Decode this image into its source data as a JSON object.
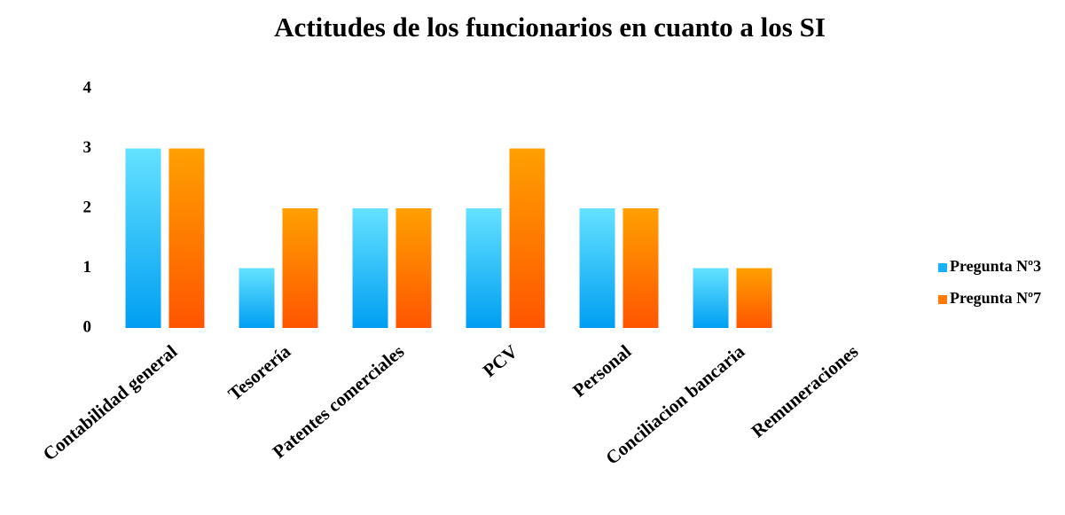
{
  "chart_data": {
    "type": "bar",
    "title": "Actitudes de los funcionarios en cuanto a los SI",
    "categories": [
      "Contabilidad general",
      "Tesorería",
      "Patentes comerciales",
      "PCV",
      "Personal",
      "Conciliacion bancaria",
      "Remuneraciones"
    ],
    "series": [
      {
        "name": "Pregunta Nº3",
        "color": "#1ab2f6",
        "values": [
          3,
          1,
          2,
          2,
          2,
          1,
          0
        ]
      },
      {
        "name": "Pregunta Nº7",
        "color": "#ff7a08",
        "values": [
          3,
          2,
          2,
          3,
          2,
          1,
          0
        ]
      }
    ],
    "ylim": [
      0,
      4
    ],
    "yticks": [
      0,
      1,
      2,
      3,
      4
    ],
    "grid": false,
    "legend": "right"
  }
}
